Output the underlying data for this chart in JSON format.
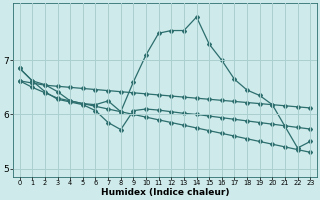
{
  "xlabel": "Humidex (Indice chaleur)",
  "background_color": "#ceeaea",
  "grid_color": "#aacfcf",
  "line_color": "#2d6e6e",
  "x": [
    0,
    1,
    2,
    3,
    4,
    5,
    6,
    7,
    8,
    9,
    10,
    11,
    12,
    13,
    14,
    15,
    16,
    17,
    18,
    19,
    20,
    21,
    22,
    23
  ],
  "series_main": [
    6.85,
    6.62,
    6.55,
    6.42,
    6.25,
    6.2,
    6.18,
    6.25,
    6.05,
    6.6,
    7.1,
    7.5,
    7.55,
    7.55,
    7.8,
    7.3,
    7.0,
    6.65,
    6.45,
    6.35,
    6.18,
    5.78,
    5.38,
    5.5
  ],
  "series_upper": [
    6.62,
    6.58,
    6.54,
    6.52,
    6.5,
    6.48,
    6.46,
    6.44,
    6.42,
    6.4,
    6.38,
    6.36,
    6.34,
    6.32,
    6.3,
    6.28,
    6.26,
    6.24,
    6.22,
    6.2,
    6.18,
    6.16,
    6.14,
    6.12
  ],
  "series_lower": [
    6.62,
    6.5,
    6.4,
    6.3,
    6.25,
    6.2,
    6.15,
    6.1,
    6.05,
    6.0,
    5.95,
    5.9,
    5.85,
    5.8,
    5.75,
    5.7,
    5.65,
    5.6,
    5.55,
    5.5,
    5.45,
    5.4,
    5.35,
    5.3
  ],
  "series_zigzag": [
    6.85,
    6.62,
    6.42,
    6.28,
    6.23,
    6.18,
    6.07,
    5.85,
    5.72,
    6.07,
    6.1,
    6.08,
    6.05,
    6.02,
    6.0,
    5.97,
    5.94,
    5.91,
    5.88,
    5.85,
    5.82,
    5.79,
    5.76,
    5.73
  ],
  "ylim": [
    4.85,
    8.05
  ],
  "yticks": [
    5,
    6,
    7
  ],
  "xlim": [
    -0.5,
    23.5
  ],
  "xticks": [
    0,
    1,
    2,
    3,
    4,
    5,
    6,
    7,
    8,
    9,
    10,
    11,
    12,
    13,
    14,
    15,
    16,
    17,
    18,
    19,
    20,
    21,
    22,
    23
  ]
}
